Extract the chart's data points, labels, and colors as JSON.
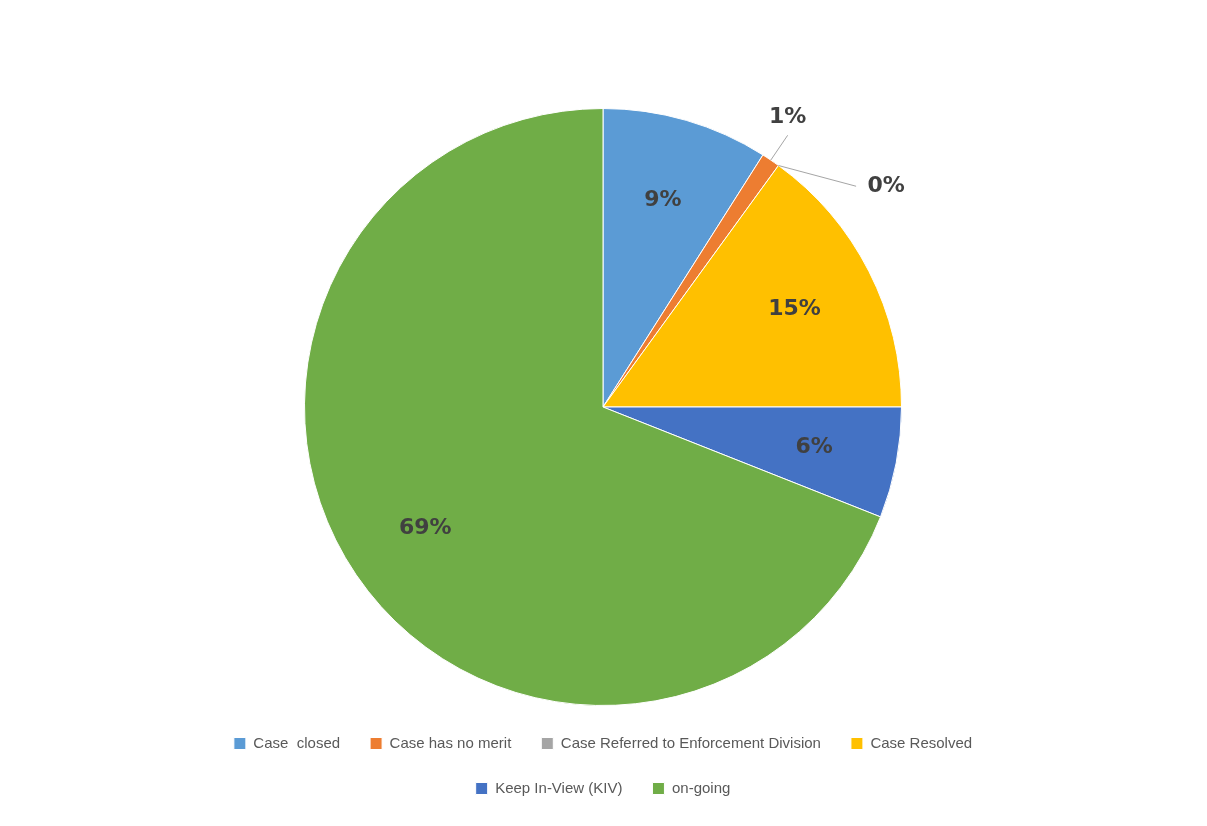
{
  "chart_data": {
    "type": "pie",
    "categories": [
      "Case  closed",
      "Case has no merit",
      "Case Referred to Enforcement Division",
      "Case Resolved",
      "Keep In-View (KIV)",
      "on-going"
    ],
    "values": [
      9,
      1,
      0,
      15,
      6,
      69
    ],
    "colors": [
      "#5b9bd5",
      "#ed7d31",
      "#a5a5a5",
      "#ffc000",
      "#4472c4",
      "#70ad47"
    ],
    "value_labels": [
      "9%",
      "1%",
      "0%",
      "15%",
      "6%",
      "69%"
    ],
    "legend": "bottom"
  }
}
